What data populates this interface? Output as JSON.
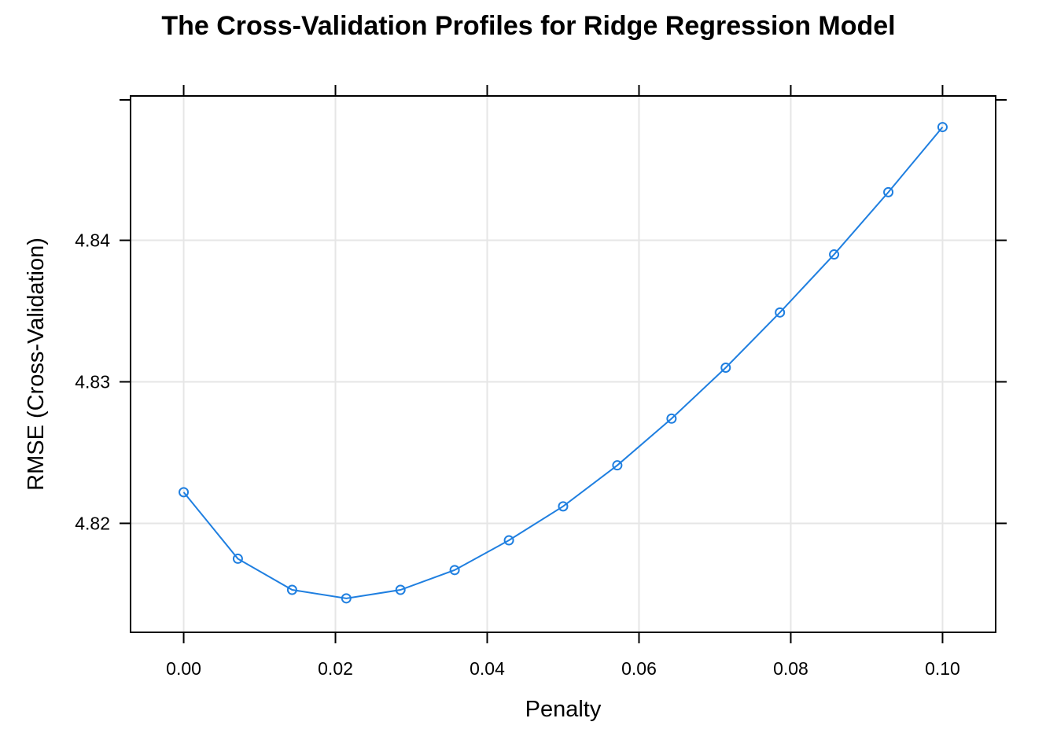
{
  "chart_data": {
    "type": "line",
    "title": "The Cross-Validation Profiles for Ridge Regression Model",
    "xlabel": "Penalty",
    "ylabel": "RMSE (Cross-Validation)",
    "xlim": [
      -0.007,
      0.107
    ],
    "ylim": [
      4.8123,
      4.8502
    ],
    "x_ticks": [
      0.0,
      0.02,
      0.04,
      0.06,
      0.08,
      0.1
    ],
    "x_tick_labels": [
      "0.00",
      "0.02",
      "0.04",
      "0.06",
      "0.08",
      "0.10"
    ],
    "y_ticks": [
      4.82,
      4.83,
      4.84
    ],
    "y_tick_labels": [
      "4.82",
      "4.83",
      "4.84"
    ],
    "grid": true,
    "series": [
      {
        "color": "#1f7fe0",
        "marker": "open-circle",
        "x": [
          0.0,
          0.00714,
          0.01429,
          0.02143,
          0.02857,
          0.03571,
          0.04286,
          0.05,
          0.05714,
          0.06429,
          0.07143,
          0.07857,
          0.08571,
          0.09286,
          0.1
        ],
        "y": [
          4.8222,
          4.8175,
          4.8153,
          4.8147,
          4.8153,
          4.8167,
          4.8188,
          4.8212,
          4.8241,
          4.8274,
          4.831,
          4.8349,
          4.839,
          4.8434,
          4.848
        ]
      }
    ]
  }
}
